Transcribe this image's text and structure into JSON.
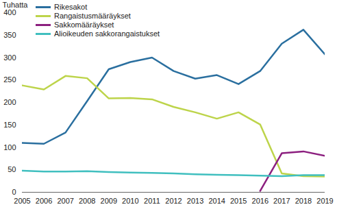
{
  "chart_data": {
    "type": "line",
    "y_label": "Tuhatta",
    "x": [
      2005,
      2006,
      2007,
      2008,
      2009,
      2010,
      2011,
      2012,
      2013,
      2014,
      2015,
      2016,
      2017,
      2018,
      2019
    ],
    "xlim": [
      2005,
      2019
    ],
    "xticks": [
      2005,
      2006,
      2007,
      2008,
      2009,
      2010,
      2011,
      2012,
      2013,
      2014,
      2015,
      2016,
      2017,
      2018,
      2019
    ],
    "ylim": [
      0,
      400
    ],
    "yticks": [
      0,
      50,
      100,
      150,
      200,
      250,
      300,
      350,
      400
    ],
    "grid": false,
    "legend": "top-left",
    "series": [
      {
        "name": "Rikesakot",
        "color": "#2a6f9f",
        "values": [
          110,
          108,
          133,
          203,
          274,
          290,
          300,
          270,
          253,
          261,
          241,
          270,
          331,
          362,
          307
        ]
      },
      {
        "name": "Rangaistusmääräykset",
        "color": "#bdd44a",
        "values": [
          238,
          229,
          259,
          254,
          209,
          210,
          207,
          190,
          178,
          164,
          178,
          151,
          42,
          36,
          35
        ]
      },
      {
        "name": "Sakkomääräykset",
        "color": "#8c1f7f",
        "values": [
          null,
          null,
          null,
          null,
          null,
          null,
          null,
          null,
          null,
          null,
          null,
          3,
          87,
          91,
          81
        ]
      },
      {
        "name": "Alioikeuden sakkorangaistukset",
        "color": "#40bfbf",
        "values": [
          48,
          46,
          46,
          47,
          45,
          44,
          43,
          42,
          40,
          39,
          38,
          37,
          36,
          38,
          38
        ]
      }
    ]
  }
}
